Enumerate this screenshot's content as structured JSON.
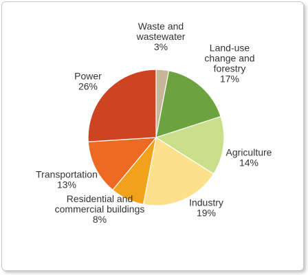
{
  "chart_data": {
    "type": "pie",
    "title": "",
    "start_angle_deg": 0,
    "direction": "clockwise",
    "slices": [
      {
        "label": [
          "Waste and",
          "wastewater"
        ],
        "value_label": "3%",
        "value": 3,
        "color": "#c7b59a"
      },
      {
        "label": [
          "Land-use",
          "change and",
          "forestry"
        ],
        "value_label": "17%",
        "value": 17,
        "color": "#6ca33f"
      },
      {
        "label": [
          "Agriculture"
        ],
        "value_label": "14%",
        "value": 14,
        "color": "#c9df8a"
      },
      {
        "label": [
          "Industry"
        ],
        "value_label": "19%",
        "value": 19,
        "color": "#fde08c"
      },
      {
        "label": [
          "Residential and",
          "commercial buildings"
        ],
        "value_label": "8%",
        "value": 8,
        "color": "#f0a21d"
      },
      {
        "label": [
          "Transportation"
        ],
        "value_label": "13%",
        "value": 13,
        "color": "#ec6a24"
      },
      {
        "label": [
          "Power"
        ],
        "value_label": "26%",
        "value": 26,
        "color": "#cf4420"
      }
    ]
  }
}
